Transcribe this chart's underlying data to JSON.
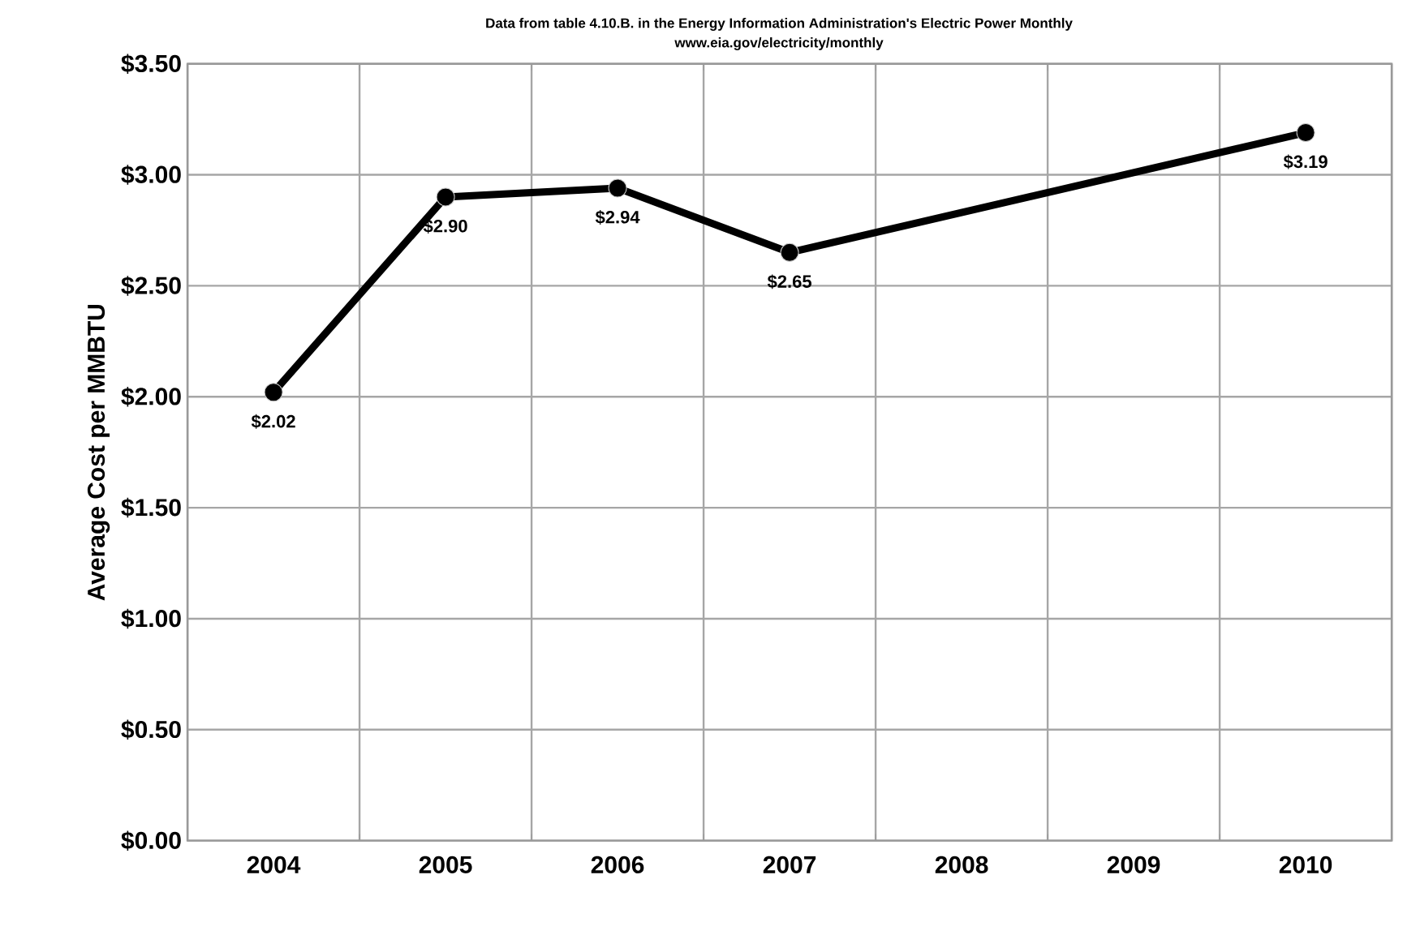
{
  "chart_data": {
    "type": "line",
    "title": "Data from table 4.10.B. in the Energy Information Administration's Electric Power Monthly",
    "subtitle": "www.eia.gov/electricity/monthly",
    "ylabel": "Average Cost per MMBTU",
    "categories": [
      "2004",
      "2005",
      "2006",
      "2007",
      "2008",
      "2009",
      "2010"
    ],
    "values": [
      2.02,
      2.9,
      2.94,
      2.65,
      null,
      null,
      3.19
    ],
    "value_labels": [
      "$2.02",
      "$2.90",
      "$2.94",
      "$2.65",
      null,
      null,
      "$3.19"
    ],
    "color": "#000000",
    "marker": "circle",
    "line_style": "solid",
    "ylim": [
      0,
      3.5
    ],
    "yticks": [
      {
        "value": 0,
        "label": "$0.00"
      },
      {
        "value": 0.5,
        "label": "$0.50"
      },
      {
        "value": 1,
        "label": "$1.00"
      },
      {
        "value": 1.5,
        "label": "$1.50"
      },
      {
        "value": 2,
        "label": "$2.00"
      },
      {
        "value": 2.5,
        "label": "$2.50"
      },
      {
        "value": 3,
        "label": "$3.00"
      },
      {
        "value": 3.5,
        "label": "$3.50"
      }
    ],
    "grid": true
  }
}
